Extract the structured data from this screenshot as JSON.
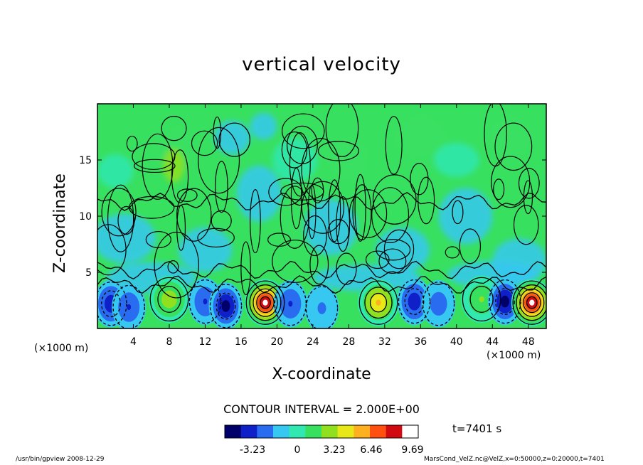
{
  "chart_data": {
    "type": "heatmap",
    "title": "vertical velocity",
    "xlabel": "X-coordinate",
    "ylabel": "Z-coordinate",
    "x_unit_label": "(×1000 m)",
    "xlim": [
      0,
      50
    ],
    "ylim": [
      0,
      20
    ],
    "x_ticks": [
      4,
      8,
      12,
      16,
      20,
      24,
      28,
      32,
      36,
      40,
      44,
      48
    ],
    "y_ticks": [
      5,
      10,
      15
    ],
    "contour_interval_label": "CONTOUR INTERVAL = 2.000E+00",
    "colorbar": {
      "ticks": [
        "-3.23",
        "0",
        "3.23",
        "6.46",
        "9.69"
      ],
      "range": [
        -5,
        10.5
      ],
      "colors": [
        "#00006a",
        "#1020c8",
        "#2a6cf0",
        "#36c8f0",
        "#30e8b0",
        "#38e060",
        "#90e020",
        "#e8e818",
        "#ffb020",
        "#ff5010",
        "#d00a10",
        "#ffffff"
      ]
    },
    "anomalies": [
      {
        "x": 1.5,
        "z": 2.2,
        "w": -3.5
      },
      {
        "x": 3.5,
        "z": 1.9,
        "w": -2.5
      },
      {
        "x": 8.0,
        "z": 2.6,
        "w": 4.0
      },
      {
        "x": 12.0,
        "z": 2.4,
        "w": -2.5
      },
      {
        "x": 14.3,
        "z": 2.0,
        "w": -4.5
      },
      {
        "x": 18.7,
        "z": 2.3,
        "w": 9.5
      },
      {
        "x": 21.5,
        "z": 2.2,
        "w": -2.5
      },
      {
        "x": 25.0,
        "z": 1.8,
        "w": -1.5
      },
      {
        "x": 31.3,
        "z": 2.3,
        "w": 5.5
      },
      {
        "x": 35.3,
        "z": 2.4,
        "w": -3.5
      },
      {
        "x": 38.0,
        "z": 2.2,
        "w": -2.0
      },
      {
        "x": 42.8,
        "z": 2.6,
        "w": 3.0
      },
      {
        "x": 45.4,
        "z": 2.4,
        "w": -4.5
      },
      {
        "x": 48.4,
        "z": 2.3,
        "w": 9.5
      }
    ],
    "grid": false,
    "legend_position": "bottom"
  },
  "time_label": "t=7401  s",
  "footer_left": "/usr/bin/gpview   2008-12-29",
  "footer_right": "MarsCond_VelZ.nc@VelZ,x=0:50000,z=0:20000,t=7401"
}
